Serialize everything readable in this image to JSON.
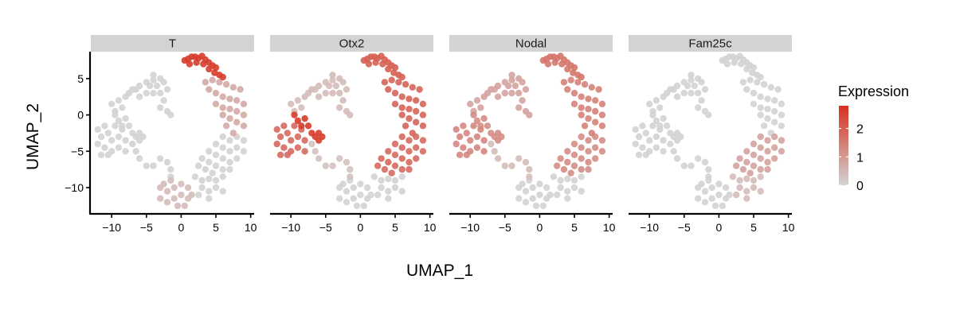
{
  "chart_data": {
    "type": "scatter",
    "xlabel": "UMAP_1",
    "ylabel": "UMAP_2",
    "xlim": [
      -13,
      10.5
    ],
    "ylim": [
      -13.5,
      8.7
    ],
    "xticks": [
      -10,
      -5,
      0,
      5,
      10
    ],
    "yticks": [
      5,
      0,
      -5,
      -10
    ],
    "xtick_labels": [
      "−10",
      "−5",
      "0",
      "5",
      "10"
    ],
    "ytick_labels": [
      "5",
      "0",
      "−5",
      "−10"
    ],
    "grid": false,
    "facets": [
      "T",
      "Otx2",
      "Nodal",
      "Fam25c"
    ],
    "point_color_low": "#d3d3d3",
    "point_color_high": "#d7301f",
    "strip_color": "#d3d3d3",
    "clusters": [
      {
        "id": "upper-left-arc",
        "points": [
          [
            -4,
            4.8
          ],
          [
            -5,
            4.5
          ],
          [
            -6,
            4
          ],
          [
            -6.5,
            3.5
          ],
          [
            -7,
            3.5
          ],
          [
            -7.5,
            3
          ],
          [
            -8,
            2.5
          ],
          [
            -9,
            2
          ],
          [
            -10,
            1.5
          ],
          [
            -4,
            5.5
          ],
          [
            -3,
            5
          ],
          [
            -2.5,
            4.5
          ],
          [
            -2,
            3.5
          ],
          [
            -3,
            3
          ],
          [
            -4,
            3
          ],
          [
            -5,
            3
          ],
          [
            -6,
            2.5
          ],
          [
            -2.5,
            2
          ],
          [
            -3,
            1
          ],
          [
            -2,
            0.5
          ],
          [
            -1.5,
            0
          ],
          [
            -8.5,
            1
          ],
          [
            -9.5,
            0.5
          ],
          [
            -4.5,
            4
          ],
          [
            -3.5,
            4
          ]
        ]
      },
      {
        "id": "left-lobe",
        "points": [
          [
            -12,
            -2
          ],
          [
            -12,
            -4
          ],
          [
            -11.5,
            -3
          ],
          [
            -11,
            -1.5
          ],
          [
            -11,
            -4.5
          ],
          [
            -10.5,
            -2.5
          ],
          [
            -10,
            -3.5
          ],
          [
            -10,
            -5
          ],
          [
            -9.5,
            -1.5
          ],
          [
            -9,
            -3
          ],
          [
            -9,
            -4.5
          ],
          [
            -8.5,
            -2
          ],
          [
            -8,
            -3.5
          ],
          [
            -8,
            -5
          ],
          [
            -11.5,
            -5.5
          ],
          [
            -10.5,
            -5.5
          ]
        ]
      },
      {
        "id": "left-upper-arm",
        "points": [
          [
            -9.5,
            0
          ],
          [
            -9,
            -0.8
          ],
          [
            -8.5,
            -1.5
          ],
          [
            -8,
            -0.5
          ],
          [
            -7.5,
            -1.5
          ],
          [
            -7,
            -2.5
          ],
          [
            -6.5,
            -3
          ],
          [
            -6,
            -3.5
          ],
          [
            -6,
            -2.5
          ],
          [
            -5.5,
            -3
          ]
        ]
      },
      {
        "id": "center-stalk",
        "points": [
          [
            -7,
            -4
          ],
          [
            -6.5,
            -5
          ],
          [
            -6,
            -6
          ],
          [
            -5,
            -7
          ],
          [
            -4,
            -7
          ],
          [
            -3,
            -6
          ],
          [
            -2,
            -6.5
          ],
          [
            -1.5,
            -7.5
          ],
          [
            -1.5,
            -8.5
          ]
        ]
      },
      {
        "id": "bottom-blob",
        "points": [
          [
            -3,
            -10
          ],
          [
            -3,
            -11.5
          ],
          [
            -2.5,
            -9.5
          ],
          [
            -2,
            -10.5
          ],
          [
            -2,
            -12
          ],
          [
            -1.5,
            -9
          ],
          [
            -1,
            -10
          ],
          [
            -1,
            -11.5
          ],
          [
            0,
            -9.5
          ],
          [
            0,
            -11
          ],
          [
            0.5,
            -12.5
          ],
          [
            1,
            -10
          ],
          [
            1,
            -11.5
          ],
          [
            -0.5,
            -12.5
          ],
          [
            1.5,
            -11
          ]
        ]
      },
      {
        "id": "top-cap",
        "points": [
          [
            0.5,
            7.5
          ],
          [
            1,
            7.7
          ],
          [
            1.5,
            8
          ],
          [
            2,
            8
          ],
          [
            2.5,
            7.8
          ],
          [
            3,
            8.1
          ],
          [
            3.5,
            7.6
          ],
          [
            4,
            7.2
          ],
          [
            4.5,
            6.8
          ],
          [
            5,
            6.5
          ],
          [
            1.2,
            7
          ],
          [
            2.2,
            7.2
          ],
          [
            3.2,
            7
          ],
          [
            4,
            6.3
          ],
          [
            4.8,
            5.8
          ],
          [
            5.5,
            5.5
          ],
          [
            6,
            5.2
          ]
        ]
      },
      {
        "id": "right-upper",
        "points": [
          [
            3.5,
            4.5
          ],
          [
            4.5,
            4.8
          ],
          [
            5.5,
            4.5
          ],
          [
            6.5,
            4.2
          ],
          [
            7.5,
            3.8
          ],
          [
            8.5,
            3.5
          ],
          [
            4,
            3.5
          ],
          [
            5,
            3
          ],
          [
            6,
            2.5
          ],
          [
            7,
            2.2
          ],
          [
            8,
            2
          ],
          [
            9,
            1.5
          ],
          [
            5,
            1.5
          ],
          [
            6,
            1
          ],
          [
            7,
            0.8
          ],
          [
            8,
            0.5
          ],
          [
            9,
            0
          ],
          [
            6,
            0
          ],
          [
            7,
            -0.5
          ],
          [
            8,
            -1
          ],
          [
            9,
            -1.5
          ],
          [
            6.5,
            -1.5
          ],
          [
            7.5,
            -2.5
          ]
        ]
      },
      {
        "id": "right-lower",
        "points": [
          [
            6,
            -3
          ],
          [
            7,
            -3.5
          ],
          [
            8,
            -3
          ],
          [
            9,
            -3.5
          ],
          [
            5,
            -4
          ],
          [
            6,
            -4.5
          ],
          [
            7,
            -5
          ],
          [
            8,
            -4.5
          ],
          [
            9,
            -5
          ],
          [
            4,
            -5
          ],
          [
            5,
            -5.5
          ],
          [
            6,
            -6
          ],
          [
            7,
            -6.5
          ],
          [
            8,
            -6
          ],
          [
            3,
            -6
          ],
          [
            4,
            -6.5
          ],
          [
            5,
            -7
          ],
          [
            6,
            -7.5
          ],
          [
            7,
            -7.5
          ],
          [
            2.5,
            -7
          ],
          [
            3.5,
            -7.5
          ],
          [
            4.5,
            -8
          ]
        ]
      },
      {
        "id": "lower-bridge",
        "points": [
          [
            2,
            -8.5
          ],
          [
            3,
            -9
          ],
          [
            4,
            -8.8
          ],
          [
            5,
            -9
          ],
          [
            6,
            -8.5
          ],
          [
            3,
            -10
          ],
          [
            4,
            -10.5
          ],
          [
            5,
            -10
          ],
          [
            6,
            -10.5
          ],
          [
            2.5,
            -11
          ],
          [
            4,
            -11.5
          ]
        ]
      }
    ],
    "expression": {
      "T": {
        "top-cap": 2.6,
        "right-upper": 0.7,
        "bottom-blob": 0.4
      },
      "Otx2": {
        "left-lobe": 1.8,
        "left-upper-arm": 2.6,
        "top-cap": 2.0,
        "right-upper": 1.9,
        "right-lower": 1.8,
        "center-stalk": 0.3,
        "upper-left-arc": 0.4
      },
      "Nodal": {
        "left-lobe": 1.3,
        "left-upper-arm": 1.2,
        "top-cap": 1.6,
        "right-upper": 1.4,
        "right-lower": 1.2,
        "upper-left-arc": 0.8,
        "center-stalk": 0.4
      },
      "Fam25c": {
        "right-lower": 0.8,
        "lower-bridge": 0.4
      }
    }
  },
  "legend": {
    "title": "Expression",
    "ticks": [
      0,
      1,
      2
    ],
    "tick_labels": [
      "0",
      "1",
      "2"
    ],
    "min": 0,
    "max": 2.8
  }
}
